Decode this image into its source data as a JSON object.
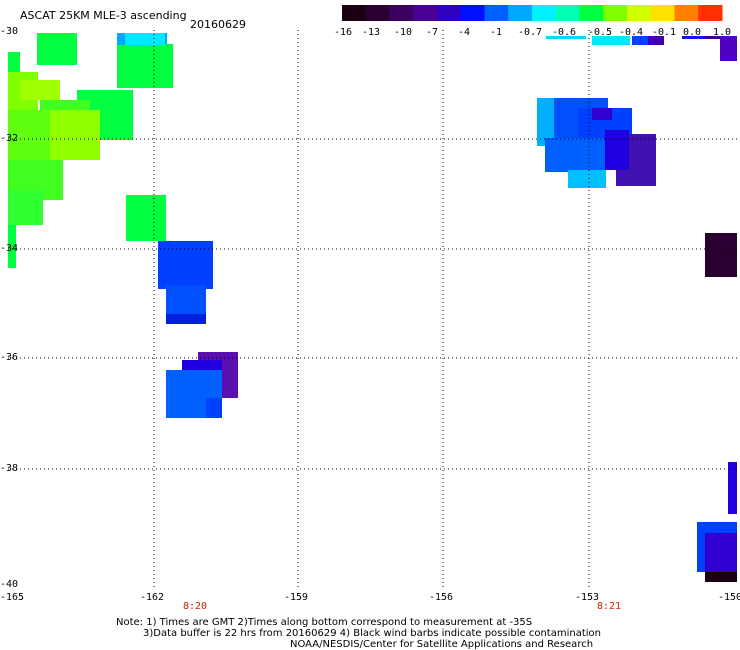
{
  "title": "ASCAT 25KM MLE-3 ascending",
  "date": "20160629",
  "colorbar": {
    "labels": [
      "-16",
      "-13",
      "-10",
      "-7",
      "-4",
      "-1",
      "-0.7",
      "-0.6",
      "-0.5",
      "-0.4",
      "-0.1",
      "0.0",
      "1.0"
    ],
    "colors": [
      "#1a0010",
      "#2a0030",
      "#3c0060",
      "#4a0090",
      "#3000c0",
      "#0010ff",
      "#0060ff",
      "#00a8ff",
      "#00f0ff",
      "#00ffb0",
      "#00ff40",
      "#80ff00",
      "#d0ff00",
      "#ffe000",
      "#ff8000",
      "#ff3000"
    ]
  },
  "axes": {
    "lat_labels": [
      "-30",
      "-32",
      "-34",
      "-36",
      "-38",
      "-40"
    ],
    "lon_labels": [
      "-165",
      "-162",
      "-159",
      "-156",
      "-153",
      "-150"
    ]
  },
  "pass_times": [
    "8:20",
    "8:21"
  ],
  "notes": [
    "Note: 1) Times are GMT 2)Times along bottom correspond to measurement at -35S",
    "3)Data buffer is 22 hrs from 20160629 4) Black wind barbs indicate possible contamination",
    "NOAA/NESDIS/Center for Satellite Applications and Research"
  ]
}
